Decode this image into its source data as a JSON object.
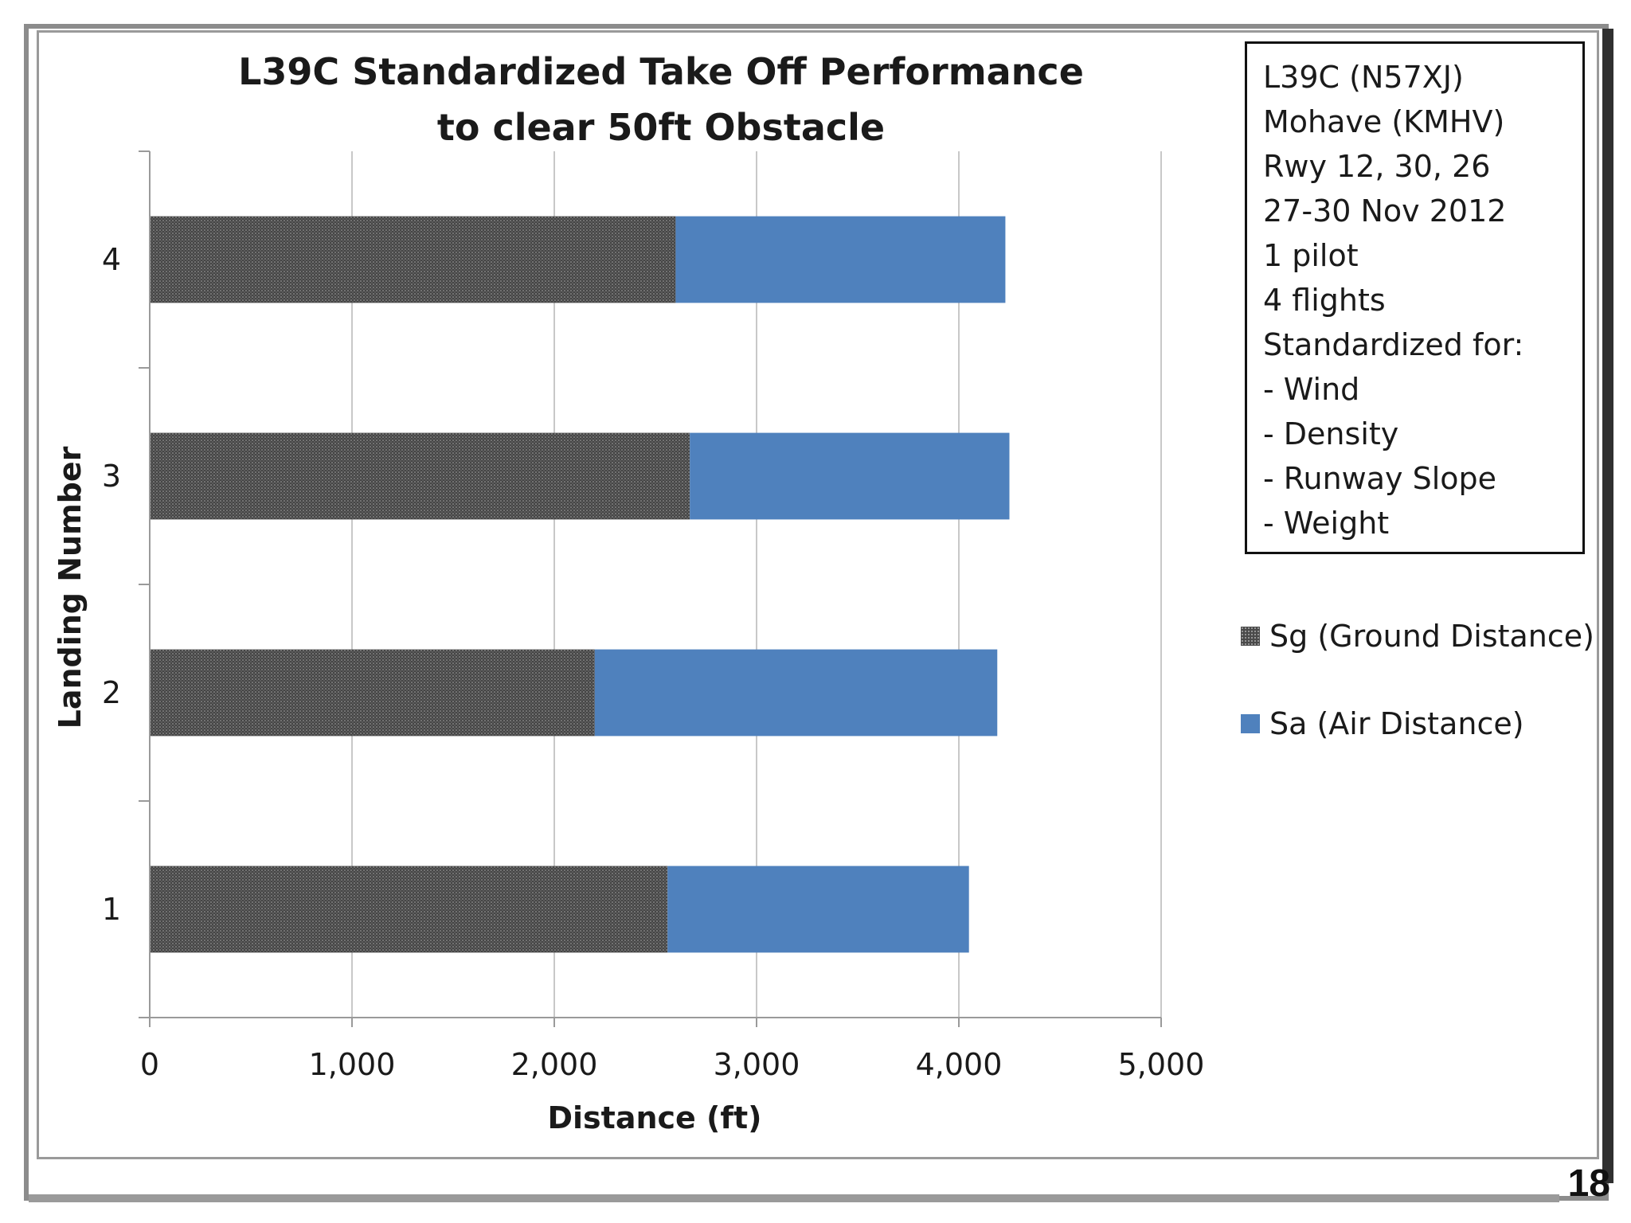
{
  "page_number": "18",
  "colors": {
    "ground": "#4a4a4a",
    "air": "#4f81bd",
    "grid": "#c8c8c8",
    "axis": "#9a9a9a"
  },
  "info_box": {
    "lines": [
      "L39C  (N57XJ)",
      "Mohave (KMHV)",
      "Rwy 12, 30, 26",
      "27-30 Nov 2012",
      "1 pilot",
      "4 flights",
      "Standardized for:",
      "- Wind",
      "- Density",
      "- Runway Slope",
      "- Weight"
    ]
  },
  "chart_data": {
    "type": "bar",
    "orientation": "horizontal",
    "stacked": true,
    "title_lines": [
      "L39C Standardized Take Off Performance",
      "to clear 50ft Obstacle"
    ],
    "xlabel": "Distance (ft)",
    "ylabel": "Landing Number",
    "xlim": [
      0,
      5000
    ],
    "xticks": [
      0,
      1000,
      2000,
      3000,
      4000,
      5000
    ],
    "xtick_labels": [
      "0",
      "1,000",
      "2,000",
      "3,000",
      "4,000",
      "5,000"
    ],
    "categories": [
      "1",
      "2",
      "3",
      "4"
    ],
    "series": [
      {
        "name": "Sg (Ground Distance)",
        "values": [
          2560,
          2200,
          2670,
          2600
        ]
      },
      {
        "name": "Sa (Air Distance)",
        "values": [
          1490,
          1990,
          1580,
          1630
        ]
      }
    ],
    "grid": "vertical",
    "legend": "right"
  }
}
